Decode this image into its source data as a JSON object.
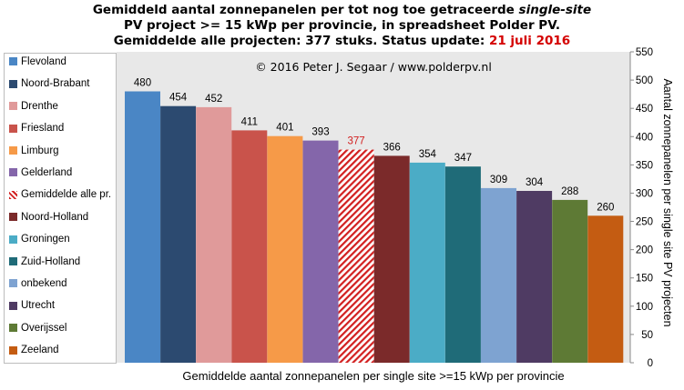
{
  "title": {
    "line1_prefix": "Gemiddeld aantal zonnepanelen per tot nog toe getraceerde ",
    "line1_italic": "single-site",
    "line2": "PV project >= 15 kWp per provincie, in spreadsheet Polder PV.",
    "line3_prefix": "Gemiddelde alle projecten: 377 stuks. Status update: ",
    "line3_date": "21 juli 2016"
  },
  "copyright": "© 2016 Peter J. Segaar / www.polderpv.nl",
  "chart_data": {
    "type": "bar",
    "categories": [
      "Flevoland",
      "Noord-Brabant",
      "Drenthe",
      "Friesland",
      "Limburg",
      "Gelderland",
      "Gemiddelde alle pr.",
      "Noord-Holland",
      "Groningen",
      "Zuid-Holland",
      "onbekend",
      "Utrecht",
      "Overijssel",
      "Zeeland"
    ],
    "values": [
      480,
      454,
      452,
      411,
      401,
      393,
      377,
      366,
      354,
      347,
      309,
      304,
      288,
      260
    ],
    "data_labels": [
      "480",
      "454",
      "452",
      "411",
      "401",
      "393",
      "377",
      "366",
      "354",
      "347",
      "309",
      "304",
      "288",
      "260"
    ],
    "colors": [
      "#4a86c5",
      "#2c4a70",
      "#e09a9a",
      "#c9534b",
      "#f69a48",
      "#8466aa",
      "#d21f1f",
      "#7b2a2a",
      "#4bacc6",
      "#1f6b78",
      "#7ea3d1",
      "#4f3b63",
      "#5e7a35",
      "#c45c12"
    ],
    "hatched_category": "Gemiddelde alle pr.",
    "average_label_color": "#d21f1f",
    "xlabel": "Gemiddelde aantal zonnepanelen per single site >=15 kWp per provincie",
    "ylabel": "Aantal zonnepanelen per single site PV projecten",
    "ylim": [
      0,
      550
    ],
    "yticks": [
      "0",
      "50",
      "100",
      "150",
      "200",
      "250",
      "300",
      "350",
      "400",
      "450",
      "500",
      "550"
    ],
    "ytick_values": [
      0,
      50,
      100,
      150,
      200,
      250,
      300,
      350,
      400,
      450,
      500,
      550
    ],
    "grid": false,
    "legend_position": "left",
    "plot_background": "#e8e8e8"
  }
}
